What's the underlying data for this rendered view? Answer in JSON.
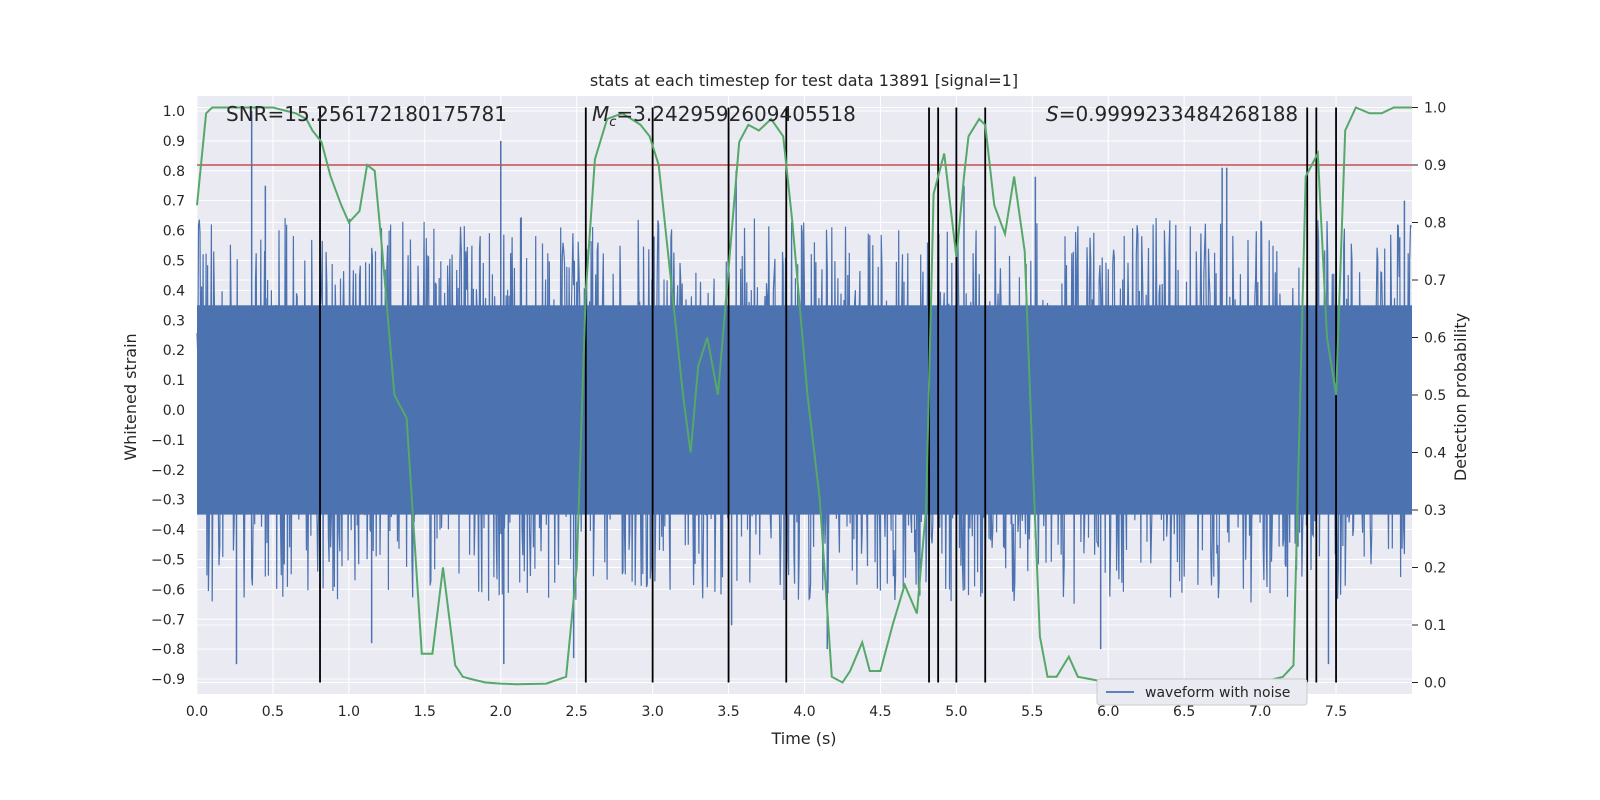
{
  "chart_data": {
    "type": "line",
    "title": "stats at each timestep for test data 13891 [signal=1]",
    "xlabel": "Time (s)",
    "ylabel_left": "Whitened strain",
    "ylabel_right": "Detection probability",
    "xlim": [
      0.0,
      8.0
    ],
    "ylim_left": [
      -0.95,
      1.05
    ],
    "ylim_right": [
      -0.02,
      1.02
    ],
    "x_ticks": [
      0.0,
      0.5,
      1.0,
      1.5,
      2.0,
      2.5,
      3.0,
      3.5,
      4.0,
      4.5,
      5.0,
      5.5,
      6.0,
      6.5,
      7.0,
      7.5
    ],
    "x_tick_labels": [
      "0.0",
      "0.5",
      "1.0",
      "1.5",
      "2.0",
      "2.5",
      "3.0",
      "3.5",
      "4.0",
      "4.5",
      "5.0",
      "5.5",
      "6.0",
      "6.5",
      "7.0",
      "7.5"
    ],
    "y_left_ticks": [
      1.0,
      0.9,
      0.8,
      0.7,
      0.6,
      0.5,
      0.4,
      0.3,
      0.2,
      0.1,
      0.0,
      -0.1,
      -0.2,
      -0.3,
      -0.4,
      -0.5,
      -0.6,
      -0.7,
      -0.8,
      -0.9
    ],
    "y_left_tick_labels": [
      "1.0",
      "0.9",
      "0.8",
      "0.7",
      "0.6",
      "0.5",
      "0.4",
      "0.3",
      "0.2",
      "0.1",
      "0.0",
      "−0.1",
      "−0.2",
      "−0.3",
      "−0.4",
      "−0.5",
      "−0.6",
      "−0.7",
      "−0.8",
      "−0.9"
    ],
    "y_right_ticks": [
      1.0,
      0.9,
      0.8,
      0.7,
      0.6,
      0.5,
      0.4,
      0.3,
      0.2,
      0.1,
      0.0
    ],
    "y_right_tick_labels": [
      "1.0",
      "0.9",
      "0.8",
      "0.7",
      "0.6",
      "0.5",
      "0.4",
      "0.3",
      "0.2",
      "0.1",
      "0.0"
    ],
    "grid": true,
    "annotations": {
      "snr": "SNR=15.256172180175781",
      "mc_symbol": "M",
      "mc_subscript": "c",
      "mc_value": "=3.2429592609405518",
      "s_symbol": "S",
      "s_value": "=0.9999233484268188"
    },
    "threshold": {
      "value": 0.9,
      "axis": "right",
      "color": "#c44e52"
    },
    "vertical_markers": [
      0.81,
      2.56,
      3.0,
      3.5,
      3.88,
      4.82,
      4.88,
      5.0,
      5.19,
      7.31,
      7.37,
      7.5
    ],
    "waveform": {
      "name": "waveform with noise",
      "color": "#4c72b0",
      "sample_count": 1600,
      "band_range": [
        -0.35,
        0.35
      ],
      "spikes": [
        {
          "t": 0.36,
          "v": 1.0
        },
        {
          "t": 0.36,
          "v": -0.2
        },
        {
          "t": 0.26,
          "v": -0.85
        },
        {
          "t": 0.45,
          "v": 0.75
        },
        {
          "t": 1.15,
          "v": -0.78
        },
        {
          "t": 2.0,
          "v": 0.9
        },
        {
          "t": 2.02,
          "v": -0.85
        },
        {
          "t": 2.48,
          "v": -0.83
        },
        {
          "t": 3.55,
          "v": 0.8
        },
        {
          "t": 3.52,
          "v": -0.72
        },
        {
          "t": 4.15,
          "v": -0.8
        },
        {
          "t": 5.05,
          "v": 0.75
        },
        {
          "t": 5.52,
          "v": 0.78
        },
        {
          "t": 5.95,
          "v": -0.8
        },
        {
          "t": 6.75,
          "v": 0.81
        },
        {
          "t": 6.78,
          "v": 0.81
        },
        {
          "t": 7.45,
          "v": -0.85
        },
        {
          "t": 7.95,
          "v": 0.7
        }
      ]
    },
    "probability": {
      "name": "detection probability",
      "color": "#55a868",
      "x": [
        0.0,
        0.06,
        0.1,
        0.2,
        0.3,
        0.5,
        0.65,
        0.72,
        0.76,
        0.82,
        0.88,
        0.95,
        1.0,
        1.07,
        1.12,
        1.17,
        1.22,
        1.3,
        1.38,
        1.48,
        1.55,
        1.62,
        1.7,
        1.75,
        1.82,
        1.9,
        2.0,
        2.1,
        2.3,
        2.43,
        2.5,
        2.56,
        2.62,
        2.7,
        2.8,
        2.92,
        2.98,
        3.04,
        3.12,
        3.2,
        3.25,
        3.3,
        3.36,
        3.43,
        3.5,
        3.57,
        3.63,
        3.7,
        3.78,
        3.86,
        3.92,
        4.02,
        4.1,
        4.18,
        4.25,
        4.3,
        4.38,
        4.43,
        4.5,
        4.58,
        4.66,
        4.74,
        4.8,
        4.85,
        4.92,
        5.0,
        5.05,
        5.08,
        5.15,
        5.19,
        5.25,
        5.32,
        5.38,
        5.45,
        5.5,
        5.55,
        5.6,
        5.66,
        5.74,
        5.8,
        5.9,
        6.0,
        6.1,
        6.3,
        6.45,
        6.6,
        6.8,
        7.0,
        7.15,
        7.22,
        7.3,
        7.38,
        7.44,
        7.5,
        7.56,
        7.63,
        7.72,
        7.8,
        7.88,
        8.0
      ],
      "y": [
        0.83,
        0.99,
        1.0,
        1.0,
        1.0,
        1.0,
        0.99,
        0.98,
        0.96,
        0.94,
        0.88,
        0.83,
        0.8,
        0.82,
        0.9,
        0.89,
        0.75,
        0.5,
        0.46,
        0.05,
        0.05,
        0.2,
        0.03,
        0.01,
        0.005,
        0.0,
        -0.002,
        -0.003,
        -0.002,
        0.01,
        0.2,
        0.68,
        0.91,
        0.98,
        0.99,
        0.97,
        0.95,
        0.9,
        0.7,
        0.5,
        0.4,
        0.55,
        0.6,
        0.5,
        0.72,
        0.94,
        0.97,
        0.96,
        0.98,
        0.95,
        0.8,
        0.5,
        0.32,
        0.01,
        0.0,
        0.02,
        0.07,
        0.02,
        0.02,
        0.1,
        0.17,
        0.12,
        0.3,
        0.85,
        0.92,
        0.74,
        0.88,
        0.95,
        0.98,
        0.97,
        0.83,
        0.78,
        0.88,
        0.75,
        0.4,
        0.08,
        0.01,
        0.01,
        0.045,
        0.01,
        0.005,
        0.0,
        0.0,
        0.005,
        0.0,
        0.0,
        0.0,
        0.0,
        0.01,
        0.03,
        0.88,
        0.92,
        0.6,
        0.5,
        0.96,
        1.0,
        0.99,
        0.99,
        1.0,
        1.0
      ]
    }
  }
}
